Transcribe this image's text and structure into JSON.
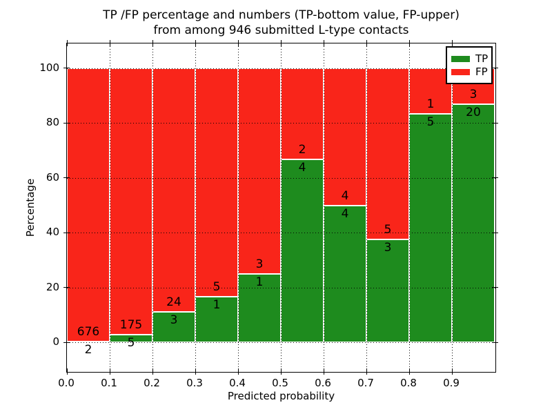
{
  "chart_data": {
    "type": "bar",
    "stacked": true,
    "percent_stack": true,
    "title_line1": "TP /FP percentage and numbers (TP-bottom value, FP-upper)",
    "title_line2": "from among 946 submitted L-type contacts",
    "xlabel": "Predicted probability",
    "ylabel": "Percentage",
    "x_tick_labels": [
      "0.0",
      "0.1",
      "0.2",
      "0.3",
      "0.4",
      "0.5",
      "0.6",
      "0.7",
      "0.8",
      "0.9"
    ],
    "y_tick_labels": [
      "0",
      "20",
      "40",
      "60",
      "80",
      "100"
    ],
    "y_tick_values": [
      0,
      20,
      40,
      60,
      80,
      100
    ],
    "xlim": [
      0.0,
      1.0
    ],
    "ylim": [
      -10.5,
      109
    ],
    "grid": "dotted",
    "bin_width": 0.1,
    "categories": [
      "0.0-0.1",
      "0.1-0.2",
      "0.2-0.3",
      "0.3-0.4",
      "0.4-0.5",
      "0.5-0.6",
      "0.6-0.7",
      "0.7-0.8",
      "0.8-0.9",
      "0.9-1.0"
    ],
    "series": [
      {
        "name": "TP",
        "color": "#1e8b1e",
        "values": [
          2,
          5,
          3,
          1,
          1,
          4,
          4,
          3,
          5,
          20
        ]
      },
      {
        "name": "FP",
        "color": "#f9251a",
        "values": [
          676,
          175,
          24,
          5,
          3,
          2,
          4,
          5,
          1,
          3
        ]
      }
    ],
    "legend": [
      {
        "label": "TP",
        "color": "#1e8b1e"
      },
      {
        "label": "FP",
        "color": "#f9251a"
      }
    ],
    "legend_position": "upper right",
    "colors": {
      "tp_green": "#1e8b1e",
      "fp_red": "#f9251a",
      "axis": "#000000",
      "background": "#ffffff"
    }
  }
}
